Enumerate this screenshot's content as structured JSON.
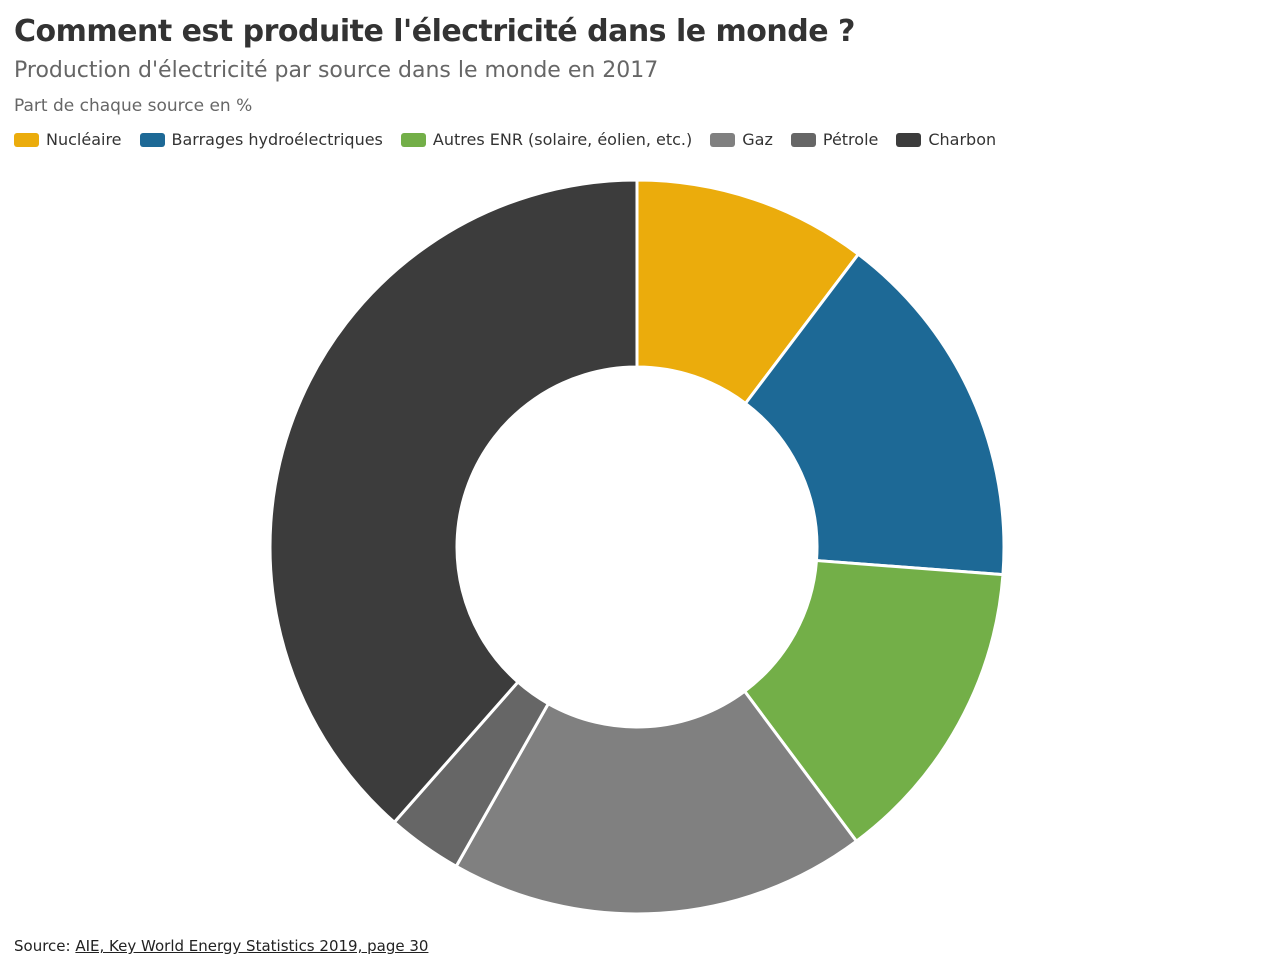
{
  "chart_data": {
    "type": "donut",
    "title": "Comment est produite l'électricité dans le monde ?",
    "subtitle": "Production d'électricité par source dans le monde en 2017",
    "note": "Part de chaque source en %",
    "categories": [
      "Nucléaire",
      "Barrages hydroélectriques",
      "Autres ENR (solaire, éolien, etc.)",
      "Gaz",
      "Pétrole",
      "Charbon"
    ],
    "values": [
      10.3,
      15.9,
      13.6,
      18.4,
      3.3,
      38.5
    ],
    "colors": [
      "#ebac0c",
      "#1d6996",
      "#73af48",
      "#808080",
      "#666666",
      "#3c3c3c"
    ],
    "source_label": "Source:",
    "source_link": "AIE, Key World Energy Statistics 2019, page 30"
  }
}
